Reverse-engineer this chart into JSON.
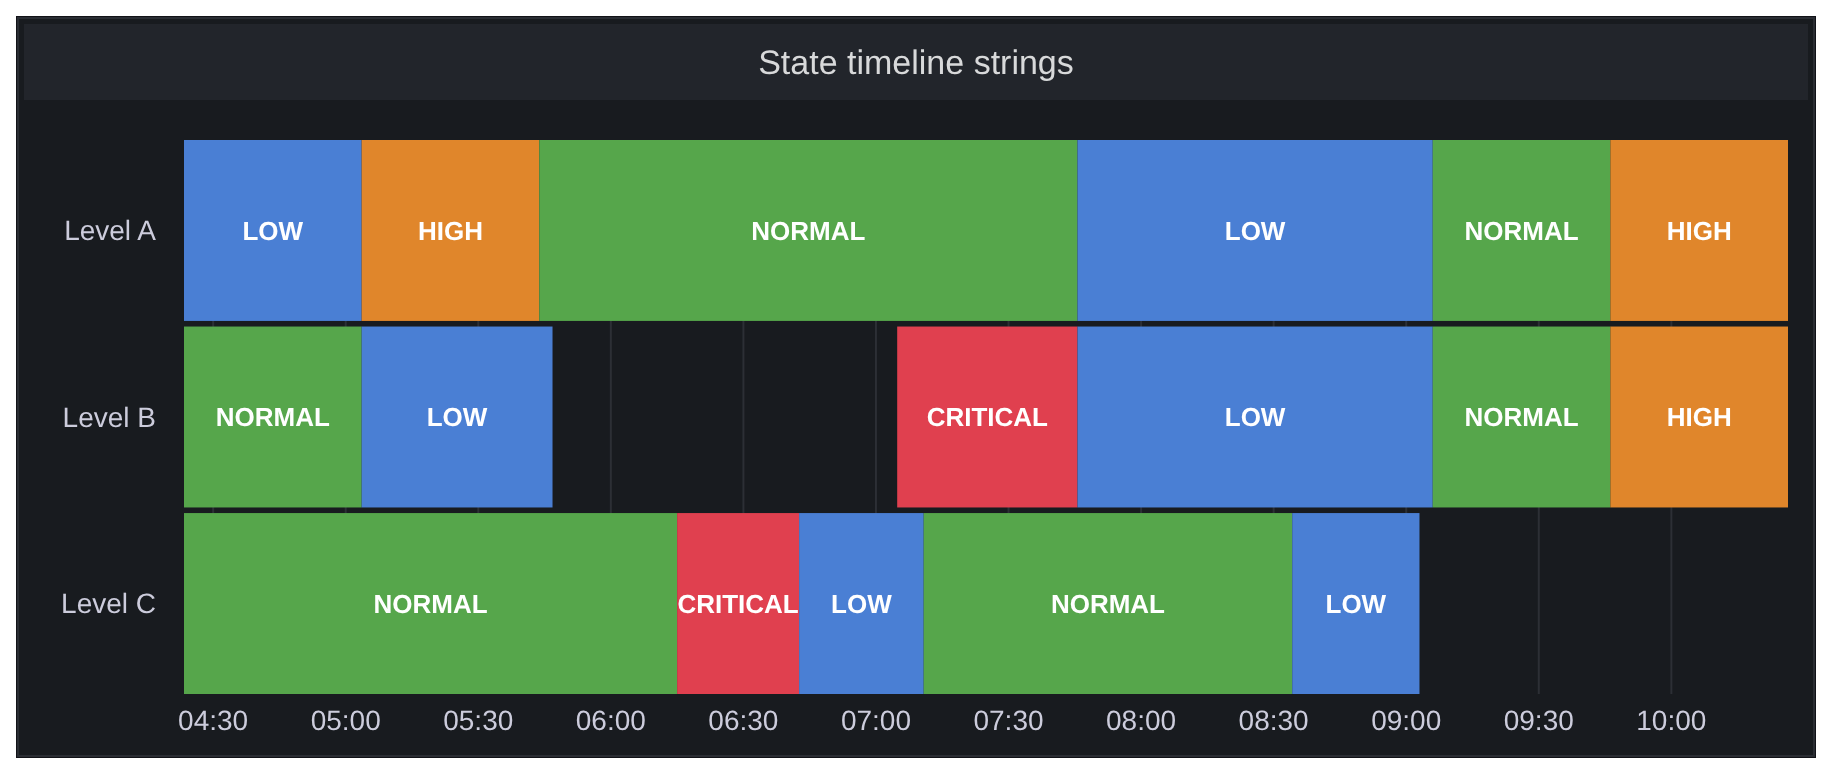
{
  "chart_data": {
    "type": "bar",
    "orientation": "horizontal",
    "title": "State timeline strings",
    "categories": [
      "Level A",
      "Level B",
      "Level C"
    ],
    "xlim": [
      4.39,
      10.44
    ],
    "xticks": [
      {
        "value": 4.5,
        "label": "04:30"
      },
      {
        "value": 5,
        "label": "05:00"
      },
      {
        "value": 5.5,
        "label": "05:30"
      },
      {
        "value": 6,
        "label": "06:00"
      },
      {
        "value": 6.5,
        "label": "06:30"
      },
      {
        "value": 7,
        "label": "07:00"
      },
      {
        "value": 7.5,
        "label": "07:30"
      },
      {
        "value": 8,
        "label": "08:00"
      },
      {
        "value": 8.5,
        "label": "08:30"
      },
      {
        "value": 9,
        "label": "09:00"
      },
      {
        "value": 9.5,
        "label": "09:30"
      },
      {
        "value": 10,
        "label": "10:00"
      }
    ],
    "grid": "x",
    "series": [
      {
        "color": "#4a7fd4",
        "values": [
          0.67,
          null,
          null
        ],
        "base": [
          4.39,
          null,
          null
        ],
        "value_labels": [
          "LOW",
          null,
          null
        ]
      },
      {
        "color": "#e0862b",
        "values": [
          0.67,
          null,
          null
        ],
        "base": [
          5.06,
          null,
          null
        ],
        "value_labels": [
          "HIGH",
          null,
          null
        ]
      },
      {
        "color": "#56a64b",
        "values": [
          2.03,
          null,
          null
        ],
        "base": [
          5.73,
          null,
          null
        ],
        "value_labels": [
          "NORMAL",
          null,
          null
        ]
      },
      {
        "color": "#4a7fd4",
        "values": [
          1.34,
          null,
          null
        ],
        "base": [
          7.76,
          null,
          null
        ],
        "value_labels": [
          "LOW",
          null,
          null
        ]
      },
      {
        "color": "#56a64b",
        "values": [
          0.67,
          null,
          null
        ],
        "base": [
          9.1,
          null,
          null
        ],
        "value_labels": [
          "NORMAL",
          null,
          null
        ]
      },
      {
        "color": "#e0862b",
        "values": [
          0.67,
          null,
          null
        ],
        "base": [
          9.77,
          null,
          null
        ],
        "value_labels": [
          "HIGH",
          null,
          null
        ]
      },
      {
        "color": "#56a64b",
        "values": [
          null,
          0.67,
          null
        ],
        "base": [
          null,
          4.39,
          null
        ],
        "value_labels": [
          null,
          "NORMAL",
          null
        ]
      },
      {
        "color": "#4a7fd4",
        "values": [
          null,
          0.72,
          null
        ],
        "base": [
          null,
          5.06,
          null
        ],
        "value_labels": [
          null,
          "LOW",
          null
        ]
      },
      {
        "color": "#e0404f",
        "values": [
          null,
          0.68,
          null
        ],
        "base": [
          null,
          7.08,
          null
        ],
        "value_labels": [
          null,
          "CRITICAL",
          null
        ]
      },
      {
        "color": "#4a7fd4",
        "values": [
          null,
          1.34,
          null
        ],
        "base": [
          null,
          7.76,
          null
        ],
        "value_labels": [
          null,
          "LOW",
          null
        ]
      },
      {
        "color": "#56a64b",
        "values": [
          null,
          0.67,
          null
        ],
        "base": [
          null,
          9.1,
          null
        ],
        "value_labels": [
          null,
          "NORMAL",
          null
        ]
      },
      {
        "color": "#e0862b",
        "values": [
          null,
          0.67,
          null
        ],
        "base": [
          null,
          9.77,
          null
        ],
        "value_labels": [
          null,
          "HIGH",
          null
        ]
      },
      {
        "color": "#56a64b",
        "values": [
          null,
          null,
          1.86
        ],
        "base": [
          null,
          null,
          4.39
        ],
        "value_labels": [
          null,
          null,
          "NORMAL"
        ]
      },
      {
        "color": "#e0404f",
        "values": [
          null,
          null,
          0.46
        ],
        "base": [
          null,
          null,
          6.25
        ],
        "value_labels": [
          null,
          null,
          "CRITICAL"
        ]
      },
      {
        "color": "#4a7fd4",
        "values": [
          null,
          null,
          0.47
        ],
        "base": [
          null,
          null,
          6.71
        ],
        "value_labels": [
          null,
          null,
          "LOW"
        ]
      },
      {
        "color": "#56a64b",
        "values": [
          null,
          null,
          1.39
        ],
        "base": [
          null,
          null,
          7.18
        ],
        "value_labels": [
          null,
          null,
          "NORMAL"
        ]
      },
      {
        "color": "#4a7fd4",
        "values": [
          null,
          null,
          0.48
        ],
        "base": [
          null,
          null,
          8.57
        ],
        "value_labels": [
          null,
          null,
          "LOW"
        ]
      }
    ]
  }
}
